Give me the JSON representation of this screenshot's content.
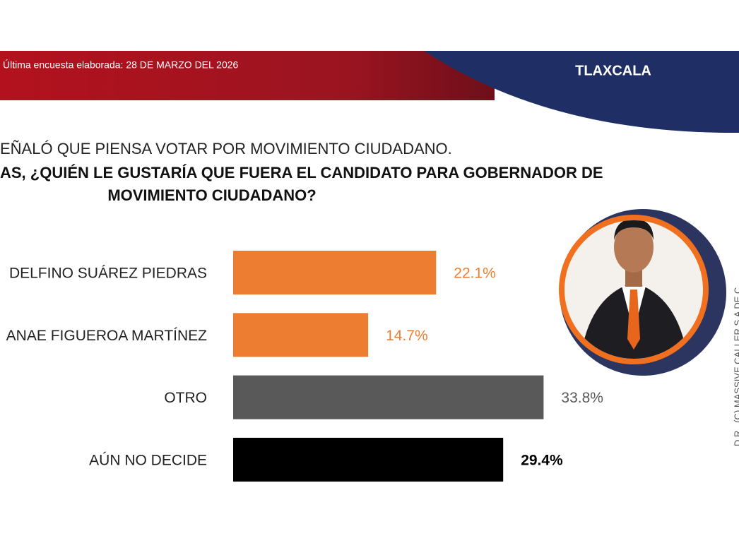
{
  "chart_data": {
    "type": "bar",
    "orientation": "horizontal",
    "subtitle": "Última encuesta elaborada: 28 DE MARZO DEL 2026",
    "region": "TLAXCALA",
    "title_lines": [
      "EÑALÓ QUE PIENSA VOTAR POR MOVIMIENTO CIUDADANO.",
      "AS, ¿QUIÉN LE GUSTARÍA QUE FUERA EL CANDIDATO PARA GOBERNADOR DE",
      "MOVIMIENTO CIUDADANO?"
    ],
    "categories": [
      "DELFINO SUÁREZ PIEDRAS",
      "ANAE FIGUEROA MARTÍNEZ",
      "OTRO",
      "AÚN NO DECIDE"
    ],
    "values": [
      22.1,
      14.7,
      33.8,
      29.4
    ],
    "value_labels": [
      "22.1%",
      "14.7%",
      "33.8%",
      "29.4%"
    ],
    "colors": [
      "#ed7d31",
      "#ed7d31",
      "#595959",
      "#000000"
    ],
    "label_colors": [
      "#ed7d31",
      "#ed7d31",
      "#595959",
      "#000000"
    ],
    "credit": "D.R., (C) MASSIVE CALLER S.A DE C"
  }
}
